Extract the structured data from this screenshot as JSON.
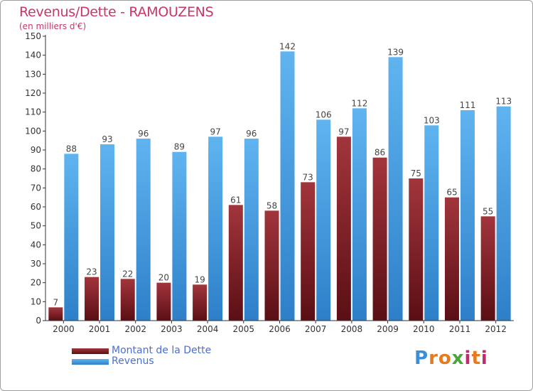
{
  "chart_data": {
    "type": "bar",
    "title": "Revenus/Dette - RAMOUZENS",
    "subtitle": "(en milliers d'€)",
    "categories": [
      "2000",
      "2001",
      "2002",
      "2003",
      "2004",
      "2005",
      "2006",
      "2007",
      "2008",
      "2009",
      "2010",
      "2011",
      "2012"
    ],
    "series": [
      {
        "name": "Montant de la Dette",
        "color": "#7a1a1f",
        "values": [
          7,
          23,
          22,
          20,
          19,
          61,
          58,
          73,
          97,
          86,
          75,
          65,
          55
        ]
      },
      {
        "name": "Revenus",
        "color": "#4ea6e8",
        "values": [
          88,
          93,
          96,
          89,
          97,
          96,
          142,
          106,
          112,
          139,
          103,
          111,
          113
        ]
      }
    ],
    "ylim": [
      0,
      150
    ],
    "yticks": [
      0,
      10,
      20,
      30,
      40,
      50,
      60,
      70,
      80,
      90,
      100,
      110,
      120,
      130,
      140,
      150
    ],
    "grid": false,
    "legend_position": "bottom-left"
  },
  "logo": {
    "letters": [
      "P",
      "r",
      "o",
      "x",
      "i",
      "t",
      "i"
    ],
    "colors": [
      "#3a8fd8",
      "#e87a1e",
      "#e87a1e",
      "#4aa83a",
      "#c22a6e",
      "#e87a1e",
      "#c22a6e"
    ]
  }
}
